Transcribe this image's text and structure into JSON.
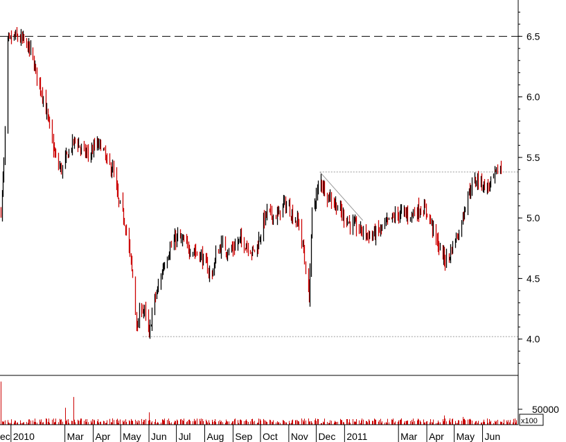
{
  "chart_data": [
    {
      "type": "candlestick",
      "panel": "price",
      "ylim": [
        3.7,
        6.8
      ],
      "yticks": [
        {
          "value": 6.5,
          "label": "6.5"
        },
        {
          "value": 6.0,
          "label": "6.0"
        },
        {
          "value": 5.5,
          "label": "5.5"
        },
        {
          "value": 5.0,
          "label": "5.0"
        },
        {
          "value": 4.5,
          "label": "4.5"
        },
        {
          "value": 4.0,
          "label": "4.0"
        }
      ],
      "xlim": [
        "2009-12-20",
        "2011-07-10"
      ],
      "x_axis_labels": [
        {
          "date": "2009-12-20",
          "label": "ec"
        },
        {
          "date": "2010-01-01",
          "label": "2010"
        },
        {
          "date": "2010-03-01",
          "label": "Mar"
        },
        {
          "date": "2010-04-01",
          "label": "Apr"
        },
        {
          "date": "2010-05-01",
          "label": "May"
        },
        {
          "date": "2010-06-01",
          "label": "Jun"
        },
        {
          "date": "2010-07-01",
          "label": "Jul"
        },
        {
          "date": "2010-08-01",
          "label": "Aug"
        },
        {
          "date": "2010-09-01",
          "label": "Sep"
        },
        {
          "date": "2010-10-01",
          "label": "Oct"
        },
        {
          "date": "2010-11-01",
          "label": "Nov"
        },
        {
          "date": "2010-12-01",
          "label": "Dec"
        },
        {
          "date": "2011-01-01",
          "label": "2011"
        },
        {
          "date": "2011-03-01",
          "label": "Mar"
        },
        {
          "date": "2011-04-01",
          "label": "Apr"
        },
        {
          "date": "2011-05-01",
          "label": "May"
        },
        {
          "date": "2011-06-01",
          "label": "Jun"
        }
      ],
      "price_path": [
        [
          "2009-12-21",
          5.06
        ],
        [
          "2009-12-24",
          5.45
        ],
        [
          "2009-12-28",
          6.45
        ],
        [
          "2010-01-05",
          6.5
        ],
        [
          "2010-01-15",
          6.46
        ],
        [
          "2010-01-22",
          6.38
        ],
        [
          "2010-01-29",
          6.18
        ],
        [
          "2010-02-05",
          6.0
        ],
        [
          "2010-02-10",
          5.82
        ],
        [
          "2010-02-15",
          5.62
        ],
        [
          "2010-02-20",
          5.45
        ],
        [
          "2010-02-25",
          5.4
        ],
        [
          "2010-03-05",
          5.55
        ],
        [
          "2010-03-12",
          5.65
        ],
        [
          "2010-03-20",
          5.55
        ],
        [
          "2010-03-28",
          5.52
        ],
        [
          "2010-04-03",
          5.6
        ],
        [
          "2010-04-10",
          5.6
        ],
        [
          "2010-04-16",
          5.45
        ],
        [
          "2010-04-22",
          5.4
        ],
        [
          "2010-04-28",
          5.15
        ],
        [
          "2010-05-05",
          4.98
        ],
        [
          "2010-05-10",
          4.75
        ],
        [
          "2010-05-15",
          4.45
        ],
        [
          "2010-05-19",
          4.05
        ],
        [
          "2010-05-22",
          4.3
        ],
        [
          "2010-05-27",
          4.22
        ],
        [
          "2010-06-01",
          4.02
        ],
        [
          "2010-06-05",
          4.28
        ],
        [
          "2010-06-10",
          4.4
        ],
        [
          "2010-06-17",
          4.62
        ],
        [
          "2010-06-24",
          4.75
        ],
        [
          "2010-07-02",
          4.85
        ],
        [
          "2010-07-08",
          4.8
        ],
        [
          "2010-07-15",
          4.75
        ],
        [
          "2010-07-22",
          4.72
        ],
        [
          "2010-07-28",
          4.68
        ],
        [
          "2010-08-03",
          4.6
        ],
        [
          "2010-08-08",
          4.5
        ],
        [
          "2010-08-14",
          4.72
        ],
        [
          "2010-08-20",
          4.78
        ],
        [
          "2010-08-26",
          4.72
        ],
        [
          "2010-09-01",
          4.75
        ],
        [
          "2010-09-08",
          4.82
        ],
        [
          "2010-09-15",
          4.78
        ],
        [
          "2010-09-22",
          4.72
        ],
        [
          "2010-09-28",
          4.78
        ],
        [
          "2010-10-03",
          4.95
        ],
        [
          "2010-10-08",
          5.05
        ],
        [
          "2010-10-14",
          5.02
        ],
        [
          "2010-10-20",
          5.02
        ],
        [
          "2010-10-26",
          5.12
        ],
        [
          "2010-11-01",
          5.08
        ],
        [
          "2010-11-06",
          5.0
        ],
        [
          "2010-11-12",
          4.95
        ],
        [
          "2010-11-17",
          4.72
        ],
        [
          "2010-11-20",
          4.5
        ],
        [
          "2010-11-23",
          4.35
        ],
        [
          "2010-11-26",
          5.05
        ],
        [
          "2010-12-01",
          5.18
        ],
        [
          "2010-12-05",
          5.32
        ],
        [
          "2010-12-12",
          5.2
        ],
        [
          "2010-12-18",
          5.15
        ],
        [
          "2010-12-25",
          5.08
        ],
        [
          "2011-01-01",
          5.0
        ],
        [
          "2011-01-08",
          4.95
        ],
        [
          "2011-01-15",
          4.92
        ],
        [
          "2011-01-22",
          4.88
        ],
        [
          "2011-01-29",
          4.85
        ],
        [
          "2011-02-05",
          4.88
        ],
        [
          "2011-02-12",
          4.92
        ],
        [
          "2011-02-19",
          4.98
        ],
        [
          "2011-02-26",
          5.02
        ],
        [
          "2011-03-05",
          5.05
        ],
        [
          "2011-03-12",
          5.02
        ],
        [
          "2011-03-19",
          5.05
        ],
        [
          "2011-03-26",
          5.08
        ],
        [
          "2011-04-01",
          5.05
        ],
        [
          "2011-04-06",
          4.95
        ],
        [
          "2011-04-11",
          4.82
        ],
        [
          "2011-04-16",
          4.72
        ],
        [
          "2011-04-21",
          4.65
        ],
        [
          "2011-04-26",
          4.7
        ],
        [
          "2011-05-01",
          4.82
        ],
        [
          "2011-05-06",
          4.88
        ],
        [
          "2011-05-11",
          5.05
        ],
        [
          "2011-05-16",
          5.2
        ],
        [
          "2011-05-21",
          5.28
        ],
        [
          "2011-05-26",
          5.32
        ],
        [
          "2011-06-01",
          5.28
        ],
        [
          "2011-06-06",
          5.25
        ],
        [
          "2011-06-11",
          5.3
        ],
        [
          "2011-06-16",
          5.38
        ],
        [
          "2011-06-21",
          5.42
        ]
      ],
      "annotations": [
        {
          "kind": "horizontal-dashed",
          "value": 6.5,
          "from": "2009-12-20",
          "to": "2011-07-10"
        },
        {
          "kind": "horizontal-dotted",
          "value": 4.02,
          "from": "2010-05-25",
          "to": "2011-07-10"
        },
        {
          "kind": "horizontal-dotted",
          "value": 5.38,
          "from": "2010-12-05",
          "to": "2011-07-10"
        },
        {
          "kind": "trendline",
          "from": [
            "2010-12-05",
            5.38
          ],
          "to": [
            "2011-01-21",
            4.98
          ]
        }
      ],
      "colors": {
        "up": "#000000",
        "down": "#cc0000",
        "grid": "#888888"
      }
    },
    {
      "type": "bar",
      "panel": "volume",
      "yticks": [
        {
          "value": 50000,
          "label": "50000"
        }
      ],
      "unit_label": "x100",
      "ylim": [
        0,
        160000
      ],
      "spikes": [
        [
          "2009-12-21",
          140000
        ],
        [
          "2010-02-20",
          60000
        ],
        [
          "2010-03-01",
          55000
        ],
        [
          "2010-03-10",
          90000
        ],
        [
          "2010-05-01",
          45000
        ],
        [
          "2010-06-01",
          40000
        ],
        [
          "2010-11-22",
          20000
        ],
        [
          "2011-04-20",
          30000
        ],
        [
          "2011-05-10",
          25000
        ]
      ],
      "baseline": 12000,
      "colors": {
        "bars": "#cc0000"
      }
    }
  ]
}
